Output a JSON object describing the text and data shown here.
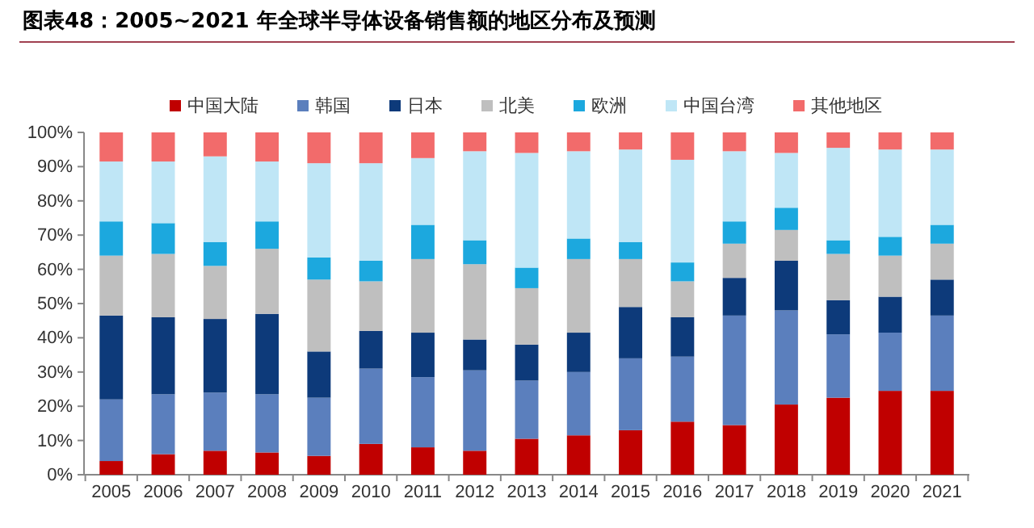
{
  "chart_data": {
    "type": "bar",
    "stacked": true,
    "title": "图表48：2005~2021 年全球半导体设备销售额的地区分布及预测",
    "categories": [
      "2005",
      "2006",
      "2007",
      "2008",
      "2009",
      "2010",
      "2011",
      "2012",
      "2013",
      "2014",
      "2015",
      "2016",
      "2017",
      "2018",
      "2019",
      "2020",
      "2021"
    ],
    "series": [
      {
        "name": "中国大陆",
        "color": "#c00000",
        "values": [
          4,
          6,
          7,
          6.5,
          5.5,
          9,
          8,
          7,
          10.5,
          11.5,
          13,
          15.5,
          14.5,
          20.5,
          22.5,
          24.5,
          24.5
        ]
      },
      {
        "name": "韩国",
        "color": "#5b7fbd",
        "values": [
          18,
          17.5,
          17,
          17,
          17,
          22,
          20.5,
          23.5,
          17,
          18.5,
          21,
          19,
          32,
          27.5,
          18.5,
          17,
          22
        ]
      },
      {
        "name": "日本",
        "color": "#0d3a7a",
        "values": [
          24.5,
          22.5,
          21.5,
          23.5,
          13.5,
          11,
          13,
          9,
          10.5,
          11.5,
          15,
          11.5,
          11,
          14.5,
          10,
          10.5,
          10.5
        ]
      },
      {
        "name": "北美",
        "color": "#bfbfbf",
        "values": [
          17.5,
          18.5,
          15.5,
          19,
          21,
          14.5,
          21.5,
          22,
          16.5,
          21.5,
          14,
          10.5,
          10,
          9,
          13.5,
          12,
          10.5
        ]
      },
      {
        "name": "欧洲",
        "color": "#1ca8de",
        "values": [
          10,
          9,
          7,
          8,
          6.5,
          6,
          10,
          7,
          6,
          6,
          5,
          5.5,
          6.5,
          6.5,
          4,
          5.5,
          5.5
        ]
      },
      {
        "name": "中国台湾",
        "color": "#bfe6f6",
        "values": [
          17.5,
          18,
          25,
          17.5,
          27.5,
          28.5,
          19.5,
          26,
          33.5,
          25.5,
          27,
          30,
          20.5,
          16,
          27,
          25.5,
          22
        ]
      },
      {
        "name": "其他地区",
        "color": "#f26b6b",
        "values": [
          8.5,
          8.5,
          7,
          8.5,
          9,
          9,
          7.5,
          5.5,
          6,
          5.5,
          5,
          8,
          5.5,
          6,
          4.5,
          5,
          5
        ]
      }
    ],
    "ylim": [
      0,
      100
    ],
    "yticks": [
      {
        "value": 0,
        "label": "0%"
      },
      {
        "value": 10,
        "label": "10%"
      },
      {
        "value": 20,
        "label": "20%"
      },
      {
        "value": 30,
        "label": "30%"
      },
      {
        "value": 40,
        "label": "40%"
      },
      {
        "value": 50,
        "label": "50%"
      },
      {
        "value": 60,
        "label": "60%"
      },
      {
        "value": 70,
        "label": "70%"
      },
      {
        "value": 80,
        "label": "80%"
      },
      {
        "value": 90,
        "label": "90%"
      },
      {
        "value": 100,
        "label": "100%"
      }
    ],
    "legend": "top"
  }
}
